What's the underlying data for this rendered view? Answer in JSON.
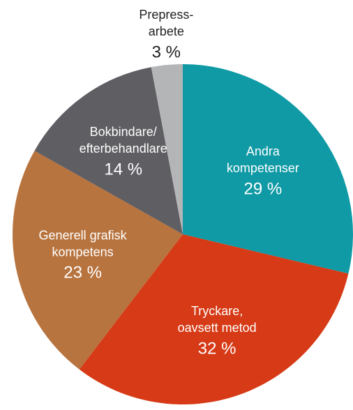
{
  "chart_data": {
    "type": "pie",
    "categories": [
      "Andra\nkompetenser",
      "Tryckare,\noavsett metod",
      "Generell grafisk\nkompetens",
      "Bokbindare/\nefterbehandlare",
      "Prepress-\narbete"
    ],
    "values": [
      29,
      32,
      23,
      14,
      3
    ],
    "value_labels": [
      "29 %",
      "32 %",
      "23 %",
      "14 %",
      "3 %"
    ],
    "colors": [
      "#0f9aa5",
      "#d63a16",
      "#b8743f",
      "#5f5e63",
      "#b4b5b7"
    ]
  }
}
